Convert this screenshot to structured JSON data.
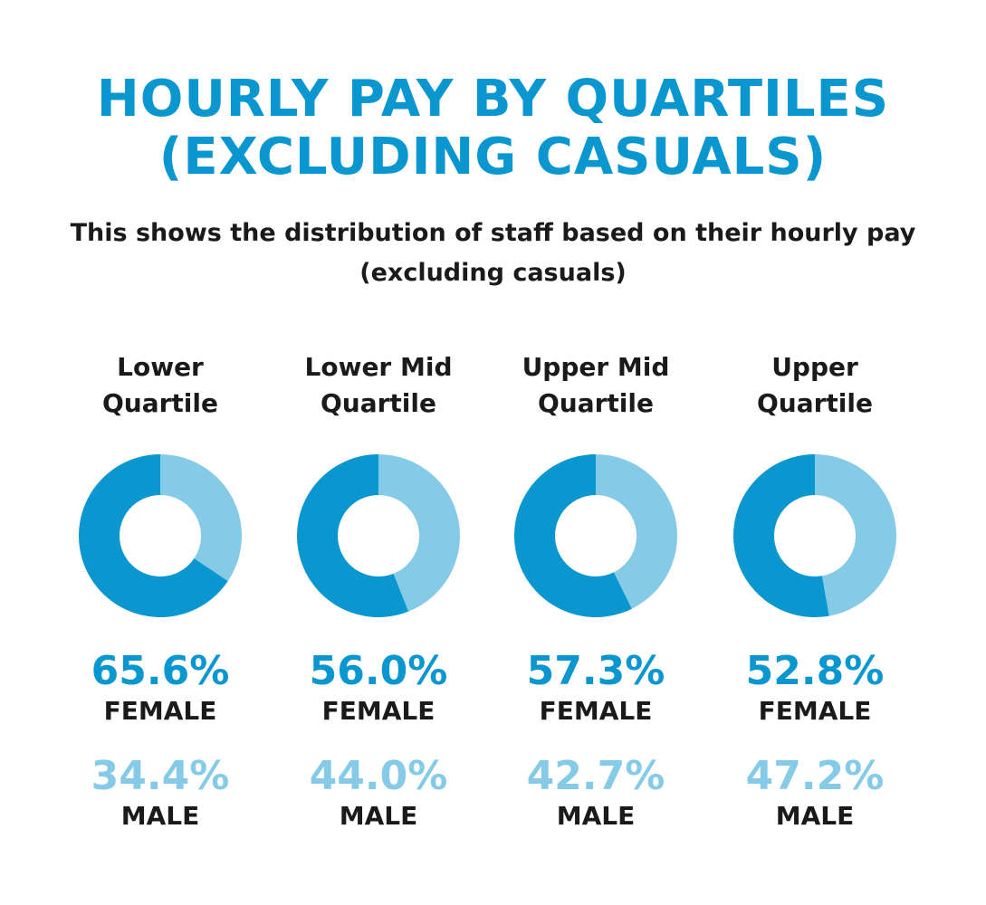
{
  "title": {
    "line1": "HOURLY PAY BY QUARTILES",
    "line2": "(EXCLUDING CASUALS)"
  },
  "subtitle": {
    "line1": "This shows the distribution of staff based on their hourly pay",
    "line2": "(excluding casuals)"
  },
  "colors": {
    "female": "#0a96ce",
    "male": "#85cbe8"
  },
  "chart_data": {
    "type": "pie",
    "variant": "donut",
    "categories": [
      [
        "Lower",
        "Quartile"
      ],
      [
        "Lower Mid",
        "Quartile"
      ],
      [
        "Upper Mid",
        "Quartile"
      ],
      [
        "Upper",
        "Quartile"
      ]
    ],
    "series": [
      {
        "name": "FEMALE",
        "values": [
          65.6,
          56.0,
          57.3,
          52.8
        ],
        "labels": [
          "65.6%",
          "56.0%",
          "57.3%",
          "52.8%"
        ]
      },
      {
        "name": "MALE",
        "values": [
          34.4,
          44.0,
          42.7,
          47.2
        ],
        "labels": [
          "34.4%",
          "44.0%",
          "42.7%",
          "47.2%"
        ]
      }
    ]
  }
}
